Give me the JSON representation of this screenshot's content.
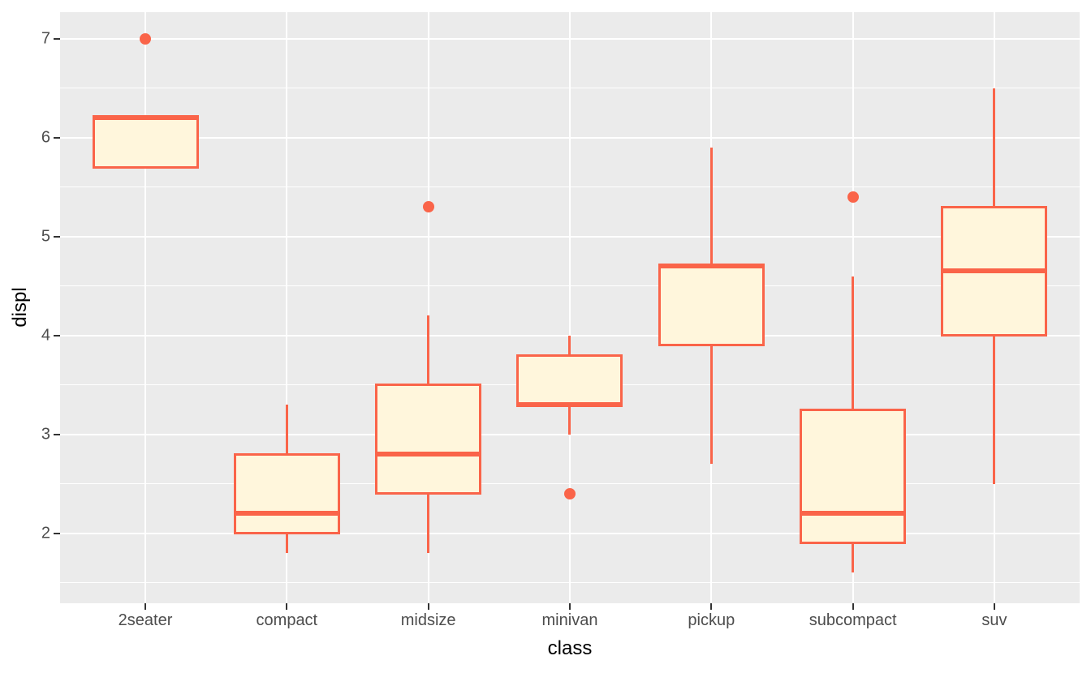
{
  "chart_data": {
    "type": "boxplot",
    "title": "",
    "xlabel": "class",
    "ylabel": "displ",
    "categories": [
      "2seater",
      "compact",
      "midsize",
      "minivan",
      "pickup",
      "subcompact",
      "suv"
    ],
    "y_ticks": [
      2,
      3,
      4,
      5,
      6,
      7
    ],
    "y_minor_ticks": [
      1.5,
      2.5,
      3.5,
      4.5,
      5.5,
      6.5
    ],
    "ylim": [
      1.29,
      7.27
    ],
    "grid": "major-and-minor-horizontal, major-vertical",
    "legend": "none",
    "series": [
      {
        "category": "2seater",
        "whisker_low": 5.7,
        "q1": 5.7,
        "median": 6.2,
        "q3": 6.2,
        "whisker_high": 6.2,
        "outliers": [
          7.0
        ]
      },
      {
        "category": "compact",
        "whisker_low": 1.8,
        "q1": 2.0,
        "median": 2.2,
        "q3": 2.8,
        "whisker_high": 3.3,
        "outliers": []
      },
      {
        "category": "midsize",
        "whisker_low": 1.8,
        "q1": 2.4,
        "median": 2.8,
        "q3": 3.5,
        "whisker_high": 4.2,
        "outliers": [
          5.3
        ]
      },
      {
        "category": "minivan",
        "whisker_low": 3.0,
        "q1": 3.3,
        "median": 3.3,
        "q3": 3.8,
        "whisker_high": 4.0,
        "outliers": [
          2.4
        ]
      },
      {
        "category": "pickup",
        "whisker_low": 2.7,
        "q1": 3.9,
        "median": 4.7,
        "q3": 4.7,
        "whisker_high": 5.9,
        "outliers": []
      },
      {
        "category": "subcompact",
        "whisker_low": 1.6,
        "q1": 1.9,
        "median": 2.2,
        "q3": 3.25,
        "whisker_high": 4.6,
        "outliers": [
          5.4
        ]
      },
      {
        "category": "suv",
        "whisker_low": 2.5,
        "q1": 4.0,
        "median": 4.65,
        "q3": 5.3,
        "whisker_high": 6.5,
        "outliers": []
      }
    ]
  },
  "colors": {
    "outer_bg": "#FFFFFF",
    "panel_bg": "#EBEBEB",
    "grid": "#FFFFFF",
    "box_stroke": "#FA6449",
    "box_fill": "#FFF6DC",
    "tick_label": "#4D4D4D",
    "axis_title": "#000000",
    "tick_mark": "#333333"
  }
}
